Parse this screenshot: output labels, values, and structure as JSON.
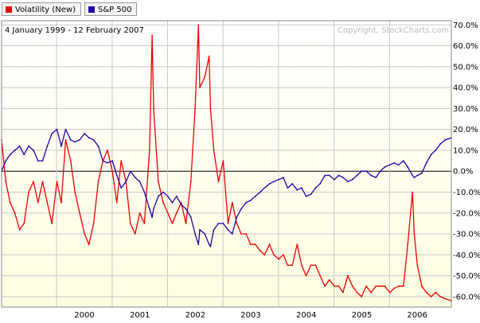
{
  "legend": [
    {
      "label": "Volatility (New)",
      "color": "#ee0000"
    },
    {
      "label": "S&P 500",
      "color": "#2200aa"
    }
  ],
  "date_range": "4 January 1999 - 12 February 2007",
  "copyright": "Copyright, StockCharts.com",
  "colors": {
    "volatility": "#ee0000",
    "sp500": "#2200aa",
    "bg_top": "#ffffff",
    "bg_bottom": "#fffde0",
    "grid": "#c8c8c8",
    "zero_line": "#000000"
  },
  "chart_data": {
    "type": "line",
    "x_range": [
      "1999-01-04",
      "2007-02-12"
    ],
    "ylim": [
      -65,
      72
    ],
    "y_ticks": [
      70,
      60,
      50,
      40,
      30,
      20,
      10,
      0,
      -10,
      -20,
      -30,
      -40,
      -50,
      -60
    ],
    "y_tick_labels": [
      "70.0%",
      "60.0%",
      "50.0%",
      "40.0%",
      "30.0%",
      "20.0%",
      "10.0%",
      "0.0%",
      "-10.0%",
      "-20.0%",
      "-30.0%",
      "-40.0%",
      "-50.0%",
      "-60.0%"
    ],
    "x_ticks": [
      "2000",
      "2001",
      "2002",
      "2003",
      "2004",
      "2005",
      "2006"
    ],
    "grid": true,
    "series": [
      {
        "name": "Volatility (New)",
        "x": [
          "1999-01-04",
          "1999-02-01",
          "1999-03-01",
          "1999-04-01",
          "1999-05-03",
          "1999-06-01",
          "1999-07-01",
          "1999-08-02",
          "1999-09-01",
          "1999-10-01",
          "1999-11-01",
          "1999-12-01",
          "2000-01-03",
          "2000-02-01",
          "2000-03-01",
          "2000-04-03",
          "2000-05-01",
          "2000-06-01",
          "2000-07-03",
          "2000-08-01",
          "2000-09-01",
          "2000-10-02",
          "2000-11-01",
          "2000-12-01",
          "2001-01-02",
          "2001-02-01",
          "2001-03-01",
          "2001-04-02",
          "2001-05-01",
          "2001-06-01",
          "2001-07-02",
          "2001-08-01",
          "2001-09-04",
          "2001-09-21",
          "2001-10-01",
          "2001-11-01",
          "2001-12-03",
          "2002-01-02",
          "2002-02-01",
          "2002-03-01",
          "2002-04-01",
          "2002-05-01",
          "2002-06-03",
          "2002-07-01",
          "2002-07-23",
          "2002-08-01",
          "2002-09-03",
          "2002-10-01",
          "2002-10-10",
          "2002-11-01",
          "2002-12-02",
          "2003-01-02",
          "2003-02-03",
          "2003-03-03",
          "2003-04-01",
          "2003-05-01",
          "2003-06-02",
          "2003-07-01",
          "2003-08-01",
          "2003-09-02",
          "2003-10-01",
          "2003-11-03",
          "2003-12-01",
          "2004-01-02",
          "2004-02-02",
          "2004-03-01",
          "2004-04-01",
          "2004-05-03",
          "2004-06-01",
          "2004-07-01",
          "2004-08-02",
          "2004-09-01",
          "2004-10-01",
          "2004-11-01",
          "2004-12-01",
          "2005-01-03",
          "2005-02-01",
          "2005-03-01",
          "2005-04-01",
          "2005-05-02",
          "2005-06-01",
          "2005-07-01",
          "2005-08-01",
          "2005-09-01",
          "2005-10-03",
          "2005-11-01",
          "2005-12-01",
          "2006-01-03",
          "2006-02-01",
          "2006-03-01",
          "2006-04-03",
          "2006-05-01",
          "2006-06-01",
          "2006-06-13",
          "2006-07-03",
          "2006-08-01",
          "2006-09-01",
          "2006-10-02",
          "2006-11-01",
          "2006-12-01",
          "2007-01-03",
          "2007-02-12"
        ],
        "values": [
          15,
          -5,
          -15,
          -20,
          -28,
          -25,
          -10,
          -5,
          -15,
          -5,
          -15,
          -25,
          -5,
          -15,
          15,
          5,
          -10,
          -20,
          -30,
          -35,
          -25,
          -5,
          5,
          10,
          0,
          -15,
          5,
          -5,
          -25,
          -30,
          -20,
          -25,
          10,
          65,
          30,
          -5,
          -15,
          -20,
          -25,
          -20,
          -15,
          -25,
          -5,
          30,
          70,
          40,
          45,
          55,
          30,
          10,
          -5,
          5,
          -25,
          -15,
          -25,
          -30,
          -30,
          -35,
          -35,
          -38,
          -40,
          -35,
          -40,
          -42,
          -40,
          -45,
          -45,
          -35,
          -45,
          -50,
          -45,
          -45,
          -50,
          -55,
          -52,
          -55,
          -55,
          -58,
          -50,
          -55,
          -58,
          -60,
          -55,
          -58,
          -55,
          -55,
          -55,
          -58,
          -56,
          -55,
          -55,
          -35,
          -10,
          -30,
          -45,
          -55,
          -58,
          -60,
          -58,
          -60,
          -61,
          -62
        ]
      },
      {
        "name": "S&P 500",
        "x": [
          "1999-01-04",
          "1999-02-01",
          "1999-03-01",
          "1999-04-01",
          "1999-05-03",
          "1999-06-01",
          "1999-07-01",
          "1999-08-02",
          "1999-09-01",
          "1999-10-01",
          "1999-11-01",
          "1999-12-01",
          "2000-01-03",
          "2000-02-01",
          "2000-03-01",
          "2000-04-03",
          "2000-05-01",
          "2000-06-01",
          "2000-07-03",
          "2000-08-01",
          "2000-09-01",
          "2000-10-02",
          "2000-11-01",
          "2000-12-01",
          "2001-01-02",
          "2001-02-01",
          "2001-03-01",
          "2001-04-02",
          "2001-05-01",
          "2001-06-01",
          "2001-07-02",
          "2001-08-01",
          "2001-09-04",
          "2001-09-21",
          "2001-10-01",
          "2001-11-01",
          "2001-12-03",
          "2002-01-02",
          "2002-02-01",
          "2002-03-01",
          "2002-04-01",
          "2002-05-01",
          "2002-06-03",
          "2002-07-01",
          "2002-07-23",
          "2002-08-01",
          "2002-09-03",
          "2002-10-01",
          "2002-10-10",
          "2002-11-01",
          "2002-12-02",
          "2003-01-02",
          "2003-02-03",
          "2003-03-03",
          "2003-04-01",
          "2003-05-01",
          "2003-06-02",
          "2003-07-01",
          "2003-08-01",
          "2003-09-02",
          "2003-10-01",
          "2003-11-03",
          "2003-12-01",
          "2004-01-02",
          "2004-02-02",
          "2004-03-01",
          "2004-04-01",
          "2004-05-03",
          "2004-06-01",
          "2004-07-01",
          "2004-08-02",
          "2004-09-01",
          "2004-10-01",
          "2004-11-01",
          "2004-12-01",
          "2005-01-03",
          "2005-02-01",
          "2005-03-01",
          "2005-04-01",
          "2005-05-02",
          "2005-06-01",
          "2005-07-01",
          "2005-08-01",
          "2005-09-01",
          "2005-10-03",
          "2005-11-01",
          "2005-12-01",
          "2006-01-03",
          "2006-02-01",
          "2006-03-01",
          "2006-04-03",
          "2006-05-01",
          "2006-06-01",
          "2006-06-13",
          "2006-07-03",
          "2006-08-01",
          "2006-09-01",
          "2006-10-02",
          "2006-11-01",
          "2006-12-01",
          "2007-01-03",
          "2007-02-12"
        ],
        "values": [
          0,
          5,
          8,
          10,
          12,
          8,
          12,
          10,
          5,
          5,
          12,
          18,
          20,
          12,
          20,
          15,
          14,
          15,
          18,
          16,
          15,
          12,
          5,
          4,
          5,
          -2,
          -8,
          -5,
          0,
          -3,
          -5,
          -10,
          -18,
          -22,
          -18,
          -12,
          -10,
          -12,
          -15,
          -12,
          -16,
          -18,
          -22,
          -30,
          -35,
          -28,
          -30,
          -35,
          -36,
          -28,
          -25,
          -25,
          -28,
          -30,
          -22,
          -18,
          -15,
          -14,
          -12,
          -10,
          -8,
          -6,
          -5,
          -4,
          -3,
          -8,
          -6,
          -9,
          -8,
          -12,
          -11,
          -8,
          -6,
          -2,
          -2,
          -4,
          -2,
          -3,
          -5,
          -4,
          -2,
          0,
          0,
          -2,
          -3,
          0,
          2,
          3,
          4,
          3,
          5,
          2,
          -2,
          -3,
          -2,
          -1,
          4,
          8,
          10,
          13,
          15,
          16
        ]
      }
    ]
  }
}
